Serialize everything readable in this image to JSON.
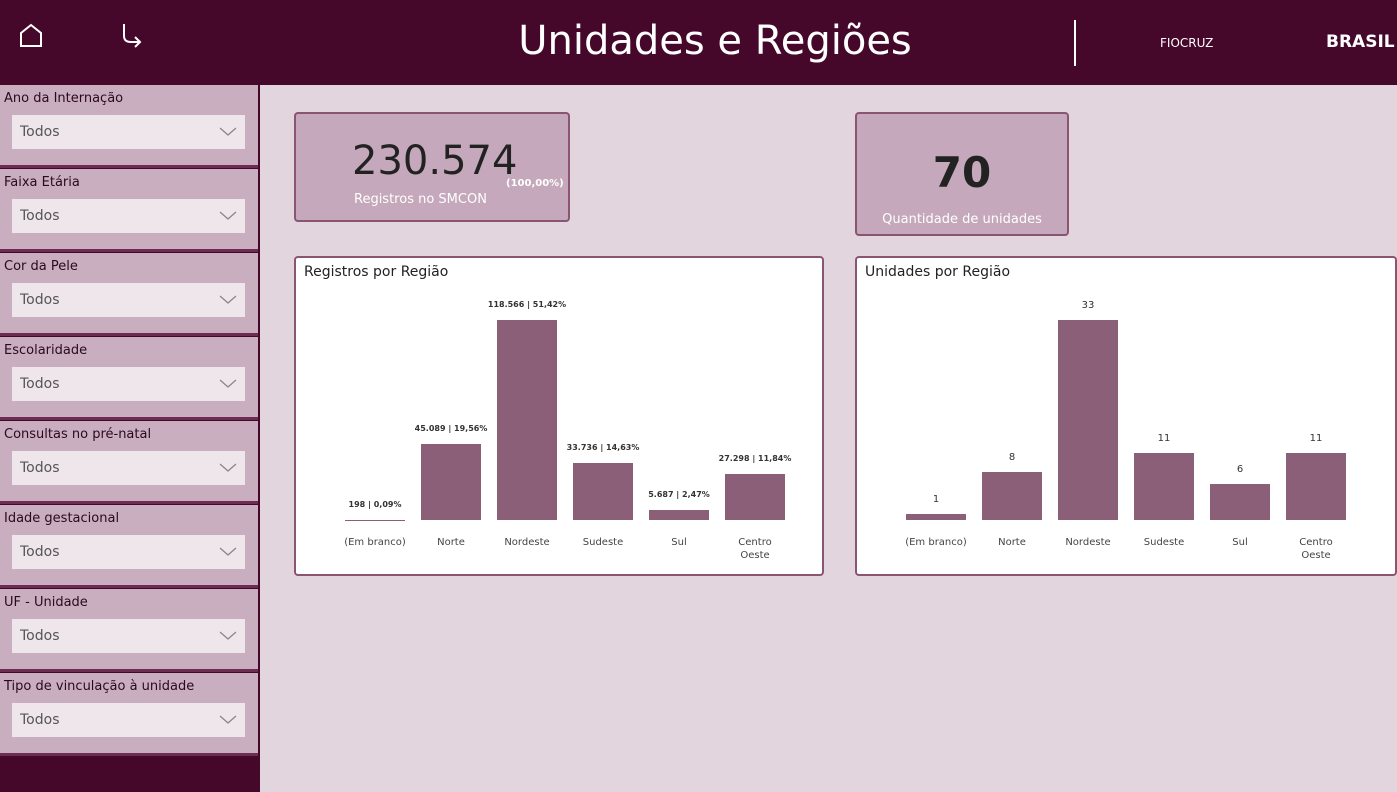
{
  "header": {
    "title": "Unidades e Regiões",
    "logos": [
      "FIOCRUZ",
      "BRASIL"
    ]
  },
  "filters": [
    {
      "label": "Ano da Internação",
      "value": "Todos"
    },
    {
      "label": "Faixa Etária",
      "value": "Todos"
    },
    {
      "label": "Cor da Pele",
      "value": "Todos"
    },
    {
      "label": "Escolaridade",
      "value": "Todos"
    },
    {
      "label": "Consultas no pré-natal",
      "value": "Todos"
    },
    {
      "label": "Idade gestacional",
      "value": "Todos"
    },
    {
      "label": "UF - Unidade",
      "value": "Todos"
    },
    {
      "label": "Tipo de vinculação à unidade",
      "value": "Todos"
    }
  ],
  "kpis": [
    {
      "value": "230.574",
      "note": "(100,00%)",
      "label": "Registros no SMCON"
    },
    {
      "value": "70",
      "label": "Quantidade de unidades"
    }
  ],
  "chart_data": [
    {
      "type": "bar",
      "title": "Registros por Região",
      "color": "#8b5f78",
      "categories": [
        "(Em branco)",
        "Norte",
        "Nordeste",
        "Sudeste",
        "Sul",
        "Centro Oeste"
      ],
      "values": [
        198,
        45089,
        118566,
        33736,
        5687,
        27298
      ],
      "value_labels": [
        "198 | 0,09%",
        "45.089 | 19,56%",
        "118.566 | 51,42%",
        "33.736 | 14,63%",
        "5.687 | 2,47%",
        "27.298 | 11,84%"
      ]
    },
    {
      "type": "bar",
      "title": "Unidades por Região",
      "color": "#8b5f78",
      "categories": [
        "(Em branco)",
        "Norte",
        "Nordeste",
        "Sudeste",
        "Sul",
        "Centro Oeste"
      ],
      "values": [
        1,
        8,
        33,
        11,
        6,
        11
      ]
    }
  ]
}
